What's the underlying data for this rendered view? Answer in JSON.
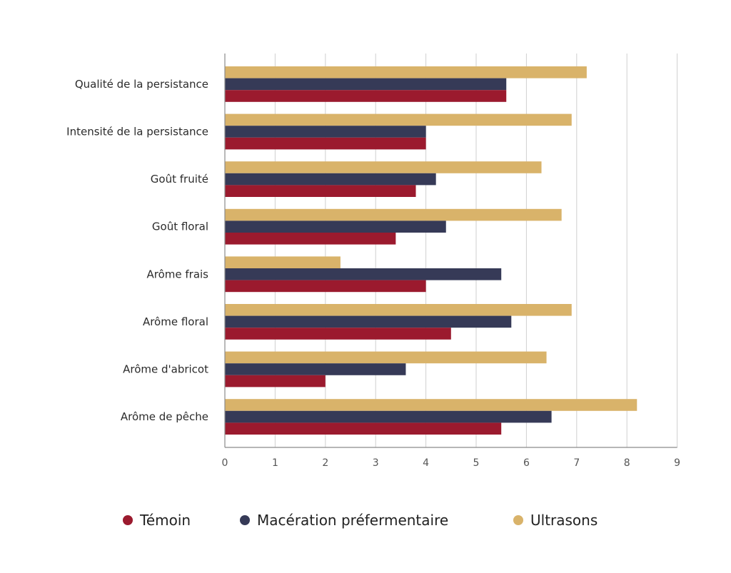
{
  "chart_data": {
    "type": "bar",
    "orientation": "horizontal",
    "categories": [
      "Qualité de la persistance",
      "Intensité de la persistance",
      "Goût fruité",
      "Goût floral",
      "Arôme frais",
      "Arôme floral",
      "Arôme d'abricot",
      "Arôme de pêche"
    ],
    "series": [
      {
        "name": "Ultrasons",
        "color": "#d9b36a",
        "values": [
          7.2,
          6.9,
          6.3,
          6.7,
          2.3,
          6.9,
          6.4,
          8.2
        ]
      },
      {
        "name": "Macération préfermentaire",
        "color": "#363a57",
        "values": [
          5.6,
          4.0,
          4.2,
          4.4,
          5.5,
          5.7,
          3.6,
          6.5
        ]
      },
      {
        "name": "Témoin",
        "color": "#9b1a2e",
        "values": [
          5.6,
          4.0,
          3.8,
          3.4,
          4.0,
          4.5,
          2.0,
          5.5
        ]
      }
    ],
    "xlim": [
      0,
      9
    ],
    "xticks": [
      "0",
      "1",
      "2",
      "3",
      "4",
      "5",
      "6",
      "7",
      "8",
      "9"
    ],
    "grid": true,
    "legend_position": "bottom",
    "title": "",
    "xlabel": "",
    "ylabel": ""
  },
  "legend": [
    {
      "label": "Témoin",
      "color": "#9b1a2e"
    },
    {
      "label": "Macération préfermentaire",
      "color": "#363a57"
    },
    {
      "label": "Ultrasons",
      "color": "#d9b36a"
    }
  ]
}
